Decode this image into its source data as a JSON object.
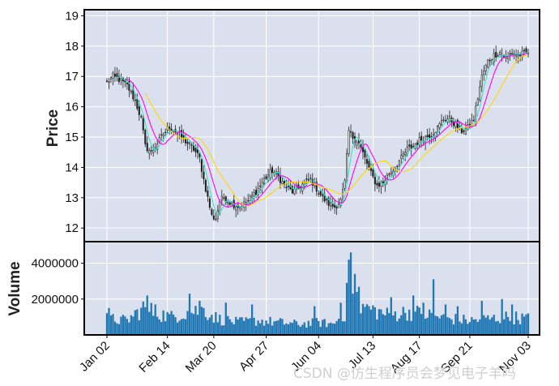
{
  "chart_data": {
    "type": "candlestick",
    "panels": [
      "price",
      "volume"
    ],
    "ylabel_price": "Price",
    "ylabel_volume": "Volume",
    "price_yticks": [
      12,
      13,
      14,
      15,
      16,
      17,
      18,
      19
    ],
    "price_ylim": [
      11.55,
      19.2
    ],
    "volume_yticks": [
      2000000,
      4000000
    ],
    "volume_ylim": [
      0,
      5200000
    ],
    "xtick_labels": [
      "Jan 02",
      "Feb 14",
      "Mar 20",
      "Apr 27",
      "Jun 04",
      "Jul 13",
      "Aug 17",
      "Sep 21",
      "Nov 03"
    ],
    "xtick_index": [
      0,
      30,
      53,
      79,
      105,
      132,
      155,
      180,
      209
    ],
    "n_days": 210,
    "moving_averages": [
      {
        "window": 5,
        "color": "#40e0d0"
      },
      {
        "window": 10,
        "color": "#ff00ff"
      },
      {
        "window": 20,
        "color": "#ffd700"
      }
    ],
    "close_keyframes": [
      [
        0,
        16.8
      ],
      [
        3,
        17.0
      ],
      [
        6,
        16.9
      ],
      [
        10,
        16.7
      ],
      [
        14,
        16.2
      ],
      [
        17,
        15.6
      ],
      [
        19,
        14.7
      ],
      [
        22,
        14.5
      ],
      [
        25,
        14.8
      ],
      [
        28,
        15.1
      ],
      [
        31,
        15.3
      ],
      [
        34,
        15.2
      ],
      [
        37,
        15.0
      ],
      [
        40,
        14.8
      ],
      [
        43,
        14.6
      ],
      [
        46,
        14.3
      ],
      [
        48,
        13.6
      ],
      [
        50,
        13.0
      ],
      [
        52,
        12.4
      ],
      [
        54,
        12.3
      ],
      [
        56,
        12.9
      ],
      [
        58,
        13.0
      ],
      [
        62,
        12.8
      ],
      [
        66,
        12.7
      ],
      [
        70,
        12.9
      ],
      [
        74,
        13.2
      ],
      [
        78,
        13.6
      ],
      [
        82,
        13.9
      ],
      [
        85,
        13.7
      ],
      [
        88,
        13.4
      ],
      [
        92,
        13.2
      ],
      [
        95,
        13.3
      ],
      [
        98,
        13.5
      ],
      [
        101,
        13.6
      ],
      [
        104,
        13.3
      ],
      [
        107,
        13.0
      ],
      [
        110,
        12.8
      ],
      [
        113,
        12.7
      ],
      [
        116,
        12.9
      ],
      [
        118,
        13.5
      ],
      [
        120,
        15.2
      ],
      [
        122,
        15.0
      ],
      [
        125,
        14.8
      ],
      [
        128,
        14.3
      ],
      [
        131,
        13.8
      ],
      [
        134,
        13.4
      ],
      [
        137,
        13.5
      ],
      [
        140,
        13.8
      ],
      [
        143,
        14.0
      ],
      [
        146,
        14.3
      ],
      [
        149,
        14.6
      ],
      [
        152,
        14.7
      ],
      [
        155,
        14.9
      ],
      [
        158,
        15.0
      ],
      [
        161,
        15.1
      ],
      [
        164,
        15.3
      ],
      [
        167,
        15.6
      ],
      [
        170,
        15.6
      ],
      [
        173,
        15.4
      ],
      [
        176,
        15.2
      ],
      [
        179,
        15.3
      ],
      [
        182,
        15.6
      ],
      [
        184,
        16.3
      ],
      [
        186,
        17.0
      ],
      [
        189,
        17.5
      ],
      [
        192,
        17.7
      ],
      [
        195,
        17.8
      ],
      [
        198,
        17.6
      ],
      [
        201,
        17.8
      ],
      [
        204,
        17.7
      ],
      [
        209,
        17.8
      ]
    ],
    "volume_keyframes": [
      [
        0,
        900000
      ],
      [
        10,
        800000
      ],
      [
        18,
        1500000
      ],
      [
        25,
        1200000
      ],
      [
        32,
        1000000
      ],
      [
        40,
        1300000
      ],
      [
        48,
        1400000
      ],
      [
        55,
        900000
      ],
      [
        65,
        700000
      ],
      [
        75,
        800000
      ],
      [
        85,
        700000
      ],
      [
        95,
        600000
      ],
      [
        105,
        700000
      ],
      [
        112,
        600000
      ],
      [
        118,
        1200000
      ],
      [
        122,
        3000000
      ],
      [
        126,
        1600000
      ],
      [
        132,
        1400000
      ],
      [
        140,
        1100000
      ],
      [
        150,
        1300000
      ],
      [
        160,
        1100000
      ],
      [
        170,
        900000
      ],
      [
        180,
        800000
      ],
      [
        190,
        900000
      ],
      [
        200,
        1000000
      ],
      [
        209,
        900000
      ]
    ],
    "volume_spikes": [
      [
        1,
        1500000
      ],
      [
        20,
        2200000
      ],
      [
        24,
        1700000
      ],
      [
        41,
        2300000
      ],
      [
        46,
        1900000
      ],
      [
        59,
        1800000
      ],
      [
        72,
        1700000
      ],
      [
        103,
        1600000
      ],
      [
        116,
        1800000
      ],
      [
        119,
        2900000
      ],
      [
        120,
        4200000
      ],
      [
        121,
        4600000
      ],
      [
        123,
        3400000
      ],
      [
        124,
        2400000
      ],
      [
        141,
        2100000
      ],
      [
        152,
        2200000
      ],
      [
        157,
        1800000
      ],
      [
        162,
        3100000
      ],
      [
        168,
        1700000
      ],
      [
        174,
        1600000
      ],
      [
        186,
        1900000
      ],
      [
        196,
        2000000
      ],
      [
        201,
        1700000
      ]
    ]
  },
  "watermark": "CSDN @仿生程序员会梦见电子羊吗"
}
